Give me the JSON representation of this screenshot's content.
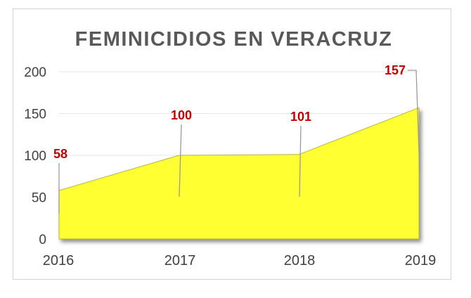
{
  "chart_data": {
    "type": "area",
    "title": "FEMINICIDIOS EN VERACRUZ",
    "xlabel": "",
    "ylabel": "",
    "categories": [
      "2016",
      "2017",
      "2018",
      "2019"
    ],
    "series": [
      {
        "values": [
          58,
          100,
          101,
          157
        ]
      }
    ],
    "data_labels": [
      "58",
      "100",
      "101",
      "157"
    ],
    "ylim": [
      0,
      200
    ],
    "y_ticks": [
      "0",
      "50",
      "100",
      "150",
      "200"
    ],
    "grid": true,
    "legend": "none",
    "colors": {
      "area_fill": "#ffff33",
      "area_edge": "#b5b54a",
      "label": "#c00000",
      "grid": "#e6e6e6",
      "axis_text": "#404040",
      "title": "#595959"
    }
  }
}
